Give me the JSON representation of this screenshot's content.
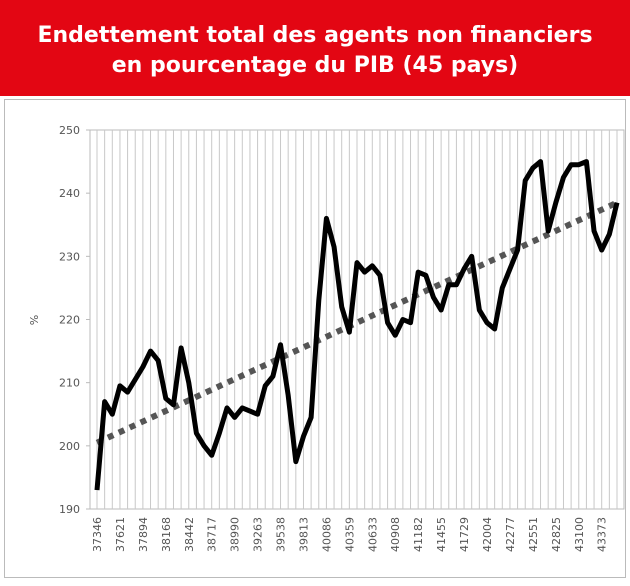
{
  "chart_data": {
    "type": "line",
    "title": [
      "Endettement total des agents non financiers",
      "en pourcentage du PIB (45 pays)"
    ],
    "y_label": "%",
    "categories": [
      "37346",
      null,
      null,
      "37621",
      null,
      null,
      "37894",
      null,
      null,
      "38168",
      null,
      null,
      "38442",
      null,
      null,
      "38717",
      null,
      null,
      "38990",
      null,
      null,
      "39263",
      null,
      null,
      "39538",
      null,
      null,
      "39813",
      null,
      null,
      "40086",
      null,
      null,
      "40359",
      null,
      null,
      "40633",
      null,
      null,
      "40908",
      null,
      null,
      "41182",
      null,
      null,
      "41455",
      null,
      null,
      "41729",
      null,
      null,
      "42004",
      null,
      null,
      "42277",
      null,
      null,
      "42551",
      null,
      null,
      "42825",
      null,
      null,
      "43100",
      null,
      null,
      "43373",
      null,
      null
    ],
    "series": [
      {
        "color": "#000000",
        "values": [
          193,
          207,
          205,
          209.5,
          208.5,
          210.5,
          212.5,
          215,
          213.5,
          207.5,
          206.5,
          215.5,
          210,
          202,
          200,
          198.5,
          202,
          206,
          204.5,
          206,
          205.5,
          205,
          209.5,
          211,
          216,
          208,
          197.5,
          201.5,
          204.5,
          223,
          236,
          231.5,
          222,
          218,
          229,
          227.5,
          228.5,
          227,
          219.5,
          217.5,
          220,
          219.5,
          227.5,
          227,
          223.5,
          221.5,
          225.5,
          225.5,
          228,
          230,
          221.5,
          219.5,
          218.5,
          225,
          228,
          231,
          242,
          244,
          245,
          234,
          238.5,
          242.5,
          244.5,
          244.5,
          245,
          234,
          231,
          233.5,
          238.5
        ]
      }
    ],
    "trendline": {
      "start": 200.5,
      "end": 238.5,
      "color": "#555555"
    },
    "ylim": [
      190,
      250
    ],
    "yticks": [
      190,
      200,
      210,
      220,
      230,
      240,
      250
    ],
    "grid": "vertical"
  }
}
